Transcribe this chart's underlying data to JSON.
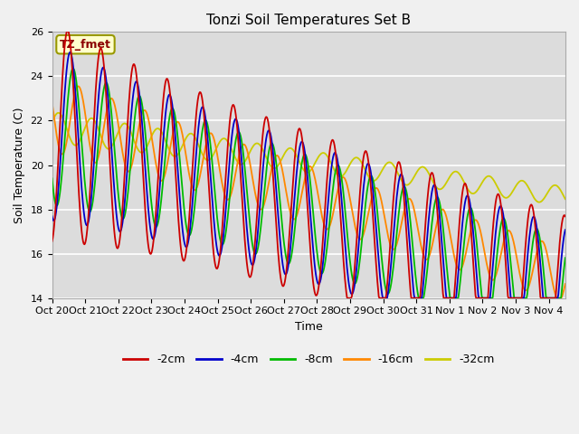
{
  "title": "Tonzi Soil Temperatures Set B",
  "xlabel": "Time",
  "ylabel": "Soil Temperature (C)",
  "ylim": [
    14,
    26
  ],
  "legend_label": "TZ_fmet",
  "series_labels": [
    "-2cm",
    "-4cm",
    "-8cm",
    "-16cm",
    "-32cm"
  ],
  "series_colors": [
    "#cc0000",
    "#0000cc",
    "#00bb00",
    "#ff8800",
    "#cccc00"
  ],
  "tick_labels": [
    "Oct 20",
    "Oct 21",
    "Oct 22",
    "Oct 23",
    "Oct 24",
    "Oct 25",
    "Oct 26",
    "Oct 27",
    "Oct 28",
    "Oct 29",
    "Oct 30",
    "Oct 31",
    "Nov 1",
    "Nov 2",
    "Nov 3",
    "Nov 4"
  ],
  "bg_color": "#dcdcdc",
  "n_days": 15.5
}
